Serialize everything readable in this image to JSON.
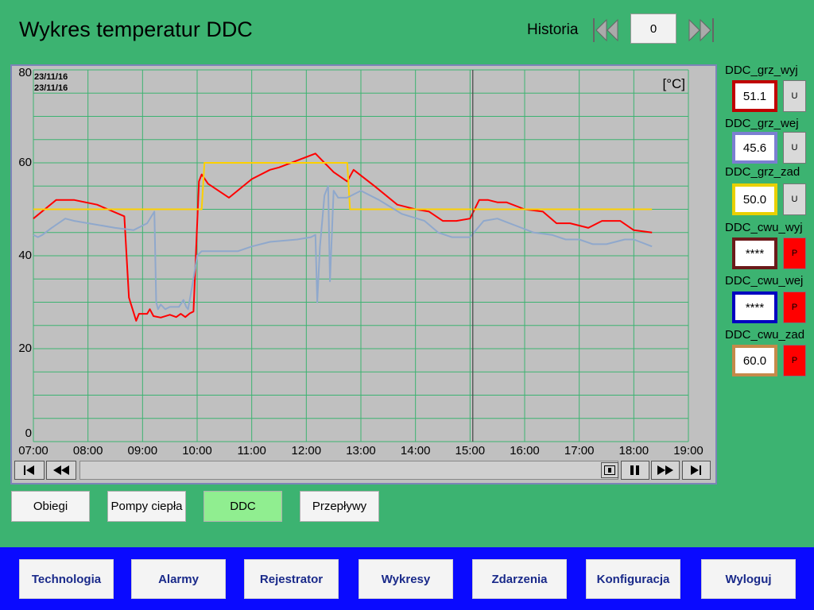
{
  "header": {
    "title": "Wykres temperatur DDC",
    "historia_label": "Historia",
    "historia_value": "0"
  },
  "chart_data": {
    "type": "line",
    "date_line1": "23/11/16",
    "date_line2": "23/11/16",
    "unit_label": "[°C]",
    "ylim": [
      0,
      80
    ],
    "y_ticks": [
      "0",
      "20",
      "40",
      "60",
      "80"
    ],
    "x_ticks": [
      "07:00",
      "08:00",
      "09:00",
      "10:00",
      "11:00",
      "12:00",
      "13:00",
      "14:00",
      "15:00",
      "16:00",
      "17:00",
      "18:00",
      "19:00"
    ],
    "xlim_hours": [
      7,
      19
    ],
    "grid": true,
    "cursor_time": "15:03",
    "series": [
      {
        "color": "#ff0000",
        "points": [
          [
            "07:00",
            48
          ],
          [
            "07:25",
            52
          ],
          [
            "07:45",
            52
          ],
          [
            "08:10",
            51
          ],
          [
            "08:40",
            48.5
          ],
          [
            "08:45",
            31
          ],
          [
            "08:53",
            26
          ],
          [
            "08:56",
            27.5
          ],
          [
            "09:05",
            27.5
          ],
          [
            "09:08",
            28.5
          ],
          [
            "09:12",
            27
          ],
          [
            "09:20",
            26.7
          ],
          [
            "09:30",
            27.3
          ],
          [
            "09:37",
            26.8
          ],
          [
            "09:42",
            27.5
          ],
          [
            "09:47",
            26.8
          ],
          [
            "09:52",
            27.6
          ],
          [
            "09:56",
            28
          ],
          [
            "10:02",
            56
          ],
          [
            "10:05",
            57.5
          ],
          [
            "10:12",
            55.5
          ],
          [
            "10:35",
            52.5
          ],
          [
            "11:00",
            56.5
          ],
          [
            "11:20",
            58.5
          ],
          [
            "11:30",
            59
          ],
          [
            "11:50",
            60.5
          ],
          [
            "12:10",
            62
          ],
          [
            "12:30",
            58
          ],
          [
            "12:45",
            56
          ],
          [
            "12:52",
            58.5
          ],
          [
            "13:15",
            55
          ],
          [
            "13:40",
            51
          ],
          [
            "14:00",
            50
          ],
          [
            "14:15",
            49.5
          ],
          [
            "14:30",
            47.5
          ],
          [
            "14:45",
            47.5
          ],
          [
            "15:00",
            48
          ],
          [
            "15:10",
            52
          ],
          [
            "15:20",
            52
          ],
          [
            "15:30",
            51.5
          ],
          [
            "15:40",
            51.5
          ],
          [
            "16:00",
            50
          ],
          [
            "16:20",
            49.5
          ],
          [
            "16:35",
            47
          ],
          [
            "16:50",
            47
          ],
          [
            "17:10",
            46
          ],
          [
            "17:25",
            47.5
          ],
          [
            "17:45",
            47.5
          ],
          [
            "18:00",
            45.5
          ],
          [
            "18:20",
            45
          ]
        ]
      },
      {
        "color": "#fcd000",
        "points": [
          [
            "07:00",
            50
          ],
          [
            "10:05",
            50
          ],
          [
            "10:08",
            60
          ],
          [
            "12:45",
            60
          ],
          [
            "12:48",
            50
          ],
          [
            "18:20",
            50
          ]
        ]
      },
      {
        "color": "#8fa8cc",
        "points": [
          [
            "07:00",
            44.5
          ],
          [
            "07:05",
            44
          ],
          [
            "07:10",
            44.5
          ],
          [
            "07:20",
            46
          ],
          [
            "07:35",
            48
          ],
          [
            "07:45",
            47.5
          ],
          [
            "08:30",
            46
          ],
          [
            "08:50",
            45.5
          ],
          [
            "09:05",
            47
          ],
          [
            "09:13",
            49.5
          ],
          [
            "09:15",
            30
          ],
          [
            "09:17",
            28.5
          ],
          [
            "09:20",
            29.5
          ],
          [
            "09:25",
            28.5
          ],
          [
            "09:30",
            29
          ],
          [
            "09:40",
            29
          ],
          [
            "09:45",
            30.5
          ],
          [
            "09:48",
            29
          ],
          [
            "09:50",
            28.5
          ],
          [
            "09:55",
            34
          ],
          [
            "10:00",
            40
          ],
          [
            "10:05",
            41
          ],
          [
            "10:10",
            41
          ],
          [
            "10:30",
            41
          ],
          [
            "10:45",
            41
          ],
          [
            "11:00",
            42
          ],
          [
            "11:20",
            43
          ],
          [
            "11:50",
            43.5
          ],
          [
            "12:05",
            44
          ],
          [
            "12:10",
            44.5
          ],
          [
            "12:12",
            30
          ],
          [
            "12:15",
            42
          ],
          [
            "12:20",
            53
          ],
          [
            "12:24",
            55
          ],
          [
            "12:26",
            34.5
          ],
          [
            "12:30",
            54
          ],
          [
            "12:35",
            52.5
          ],
          [
            "12:45",
            52.5
          ],
          [
            "12:50",
            53
          ],
          [
            "13:00",
            54
          ],
          [
            "13:20",
            52
          ],
          [
            "13:45",
            49
          ],
          [
            "14:10",
            47.5
          ],
          [
            "14:25",
            45
          ],
          [
            "14:40",
            44
          ],
          [
            "15:00",
            44
          ],
          [
            "15:15",
            47.5
          ],
          [
            "15:30",
            48
          ],
          [
            "15:50",
            46.5
          ],
          [
            "16:10",
            45
          ],
          [
            "16:30",
            44.5
          ],
          [
            "16:45",
            43.5
          ],
          [
            "17:00",
            43.5
          ],
          [
            "17:15",
            42.5
          ],
          [
            "17:30",
            42.5
          ],
          [
            "17:50",
            43.5
          ],
          [
            "18:00",
            43.5
          ],
          [
            "18:20",
            42
          ]
        ]
      }
    ]
  },
  "playback": {
    "icons": [
      "skip-to-start-icon",
      "rewind-icon",
      "zoom-box-icon",
      "pause-icon",
      "fast-forward-icon",
      "skip-to-end-icon"
    ]
  },
  "values": [
    {
      "label": "DDC_grz_wyj",
      "value": "51.1",
      "border": "#c00000",
      "mode": "U"
    },
    {
      "label": "DDC_grz_wej",
      "value": "45.6",
      "border": "#7b7fd1",
      "mode": "U"
    },
    {
      "label": "DDC_grz_zad",
      "value": "50.0",
      "border": "#e8d000",
      "mode": "U"
    },
    {
      "label": "DDC_cwu_wyj",
      "value": "****",
      "border": "#6b1a1a",
      "mode": "P"
    },
    {
      "label": "DDC_cwu_wej",
      "value": "****",
      "border": "#0000c0",
      "mode": "P"
    },
    {
      "label": "DDC_cwu_zad",
      "value": "60.0",
      "border": "#c58a4a",
      "mode": "P"
    }
  ],
  "subnav": {
    "obiegi": "Obiegi",
    "pompy": "Pompy ciepła",
    "ddc": "DDC",
    "przeplywy": "Przepływy"
  },
  "nav": {
    "technologia": "Technologia",
    "alarmy": "Alarmy",
    "rejestrator": "Rejestrator",
    "wykresy": "Wykresy",
    "zdarzenia": "Zdarzenia",
    "konfiguracja": "Konfiguracja",
    "wyloguj": "Wyloguj"
  }
}
